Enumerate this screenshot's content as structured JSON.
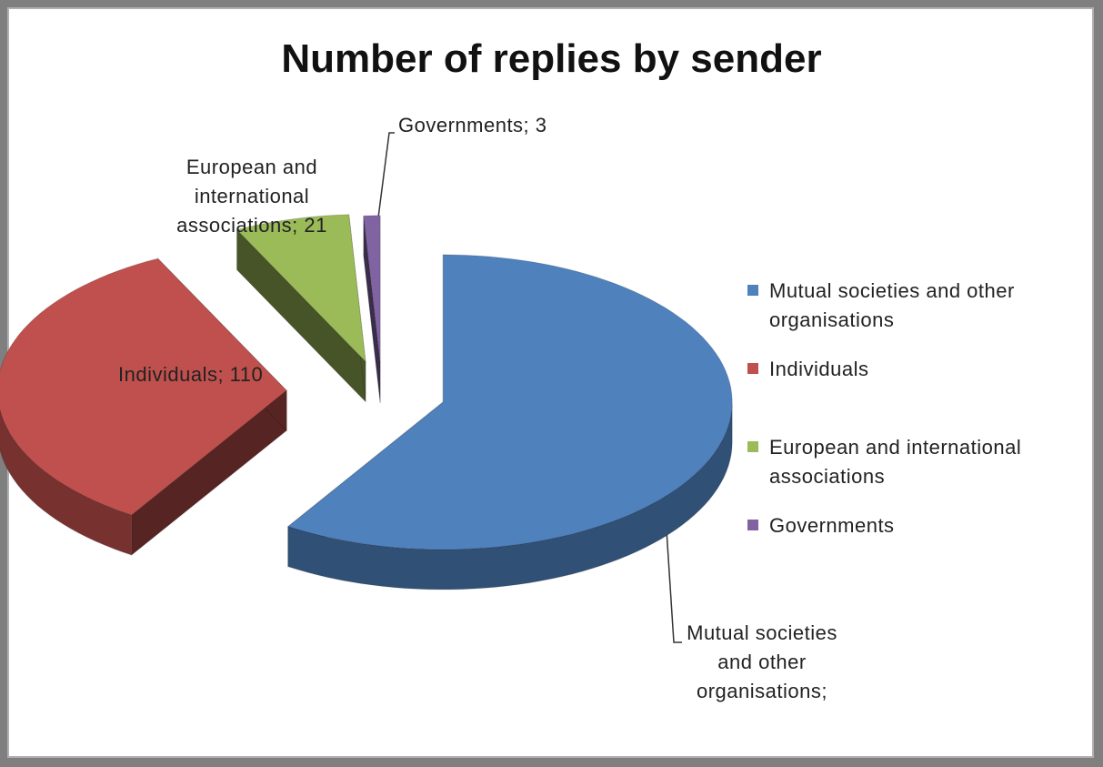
{
  "chart_data": {
    "type": "pie",
    "title": "Number of replies by sender",
    "legend_position": "right",
    "series": [
      {
        "categories": [
          "Mutual societies and other organisations",
          "Individuals",
          "European and international associations",
          "Governments"
        ],
        "values": [
          null,
          110,
          21,
          3
        ],
        "colors": [
          "#4f81bd",
          "#c0504d",
          "#9bbb59",
          "#8064a2"
        ]
      }
    ],
    "labels": [
      {
        "category": "Mutual societies and other organisations",
        "text": "Mutual societies and other organisations;"
      },
      {
        "category": "Individuals",
        "text": "Individuals; 110"
      },
      {
        "category": "European and international associations",
        "text": "European and international associations; 21"
      },
      {
        "category": "Governments",
        "text": "Governments; 3"
      }
    ],
    "legend": [
      {
        "label": "Mutual societies and other organisations",
        "color": "#4f81bd"
      },
      {
        "label": "Individuals",
        "color": "#c0504d"
      },
      {
        "label": "European and international associations",
        "color": "#9bbb59"
      },
      {
        "label": "Governments",
        "color": "#8064a2"
      }
    ]
  }
}
